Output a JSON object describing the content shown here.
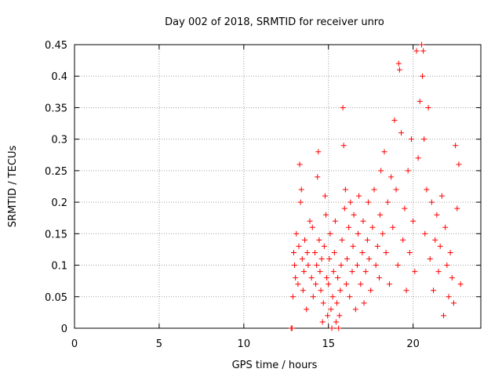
{
  "chart_data": {
    "type": "scatter",
    "title": "Day 002 of 2018, SRMTID for receiver unro",
    "xlabel": "GPS time / hours",
    "ylabel": "SRMTID / TECUs",
    "xlim": [
      0,
      24
    ],
    "ylim": [
      0,
      0.45
    ],
    "xticks": [
      0,
      5,
      10,
      15,
      20
    ],
    "yticks": [
      0,
      0.05,
      0.1,
      0.15,
      0.2,
      0.25,
      0.3,
      0.35,
      0.4,
      0.45
    ],
    "grid": true,
    "legend": "none",
    "marker": "plus",
    "color": "#ff0000",
    "series": [
      {
        "name": "SRMTID",
        "points": [
          [
            12.8,
            0.0
          ],
          [
            12.85,
            0.0
          ],
          [
            12.9,
            0.05
          ],
          [
            12.95,
            0.12
          ],
          [
            13.0,
            0.1
          ],
          [
            13.05,
            0.08
          ],
          [
            13.1,
            0.15
          ],
          [
            13.2,
            0.07
          ],
          [
            13.25,
            0.13
          ],
          [
            13.3,
            0.26
          ],
          [
            13.35,
            0.2
          ],
          [
            13.4,
            0.22
          ],
          [
            13.45,
            0.11
          ],
          [
            13.5,
            0.06
          ],
          [
            13.55,
            0.09
          ],
          [
            13.6,
            0.14
          ],
          [
            13.7,
            0.03
          ],
          [
            13.75,
            0.12
          ],
          [
            13.8,
            0.1
          ],
          [
            13.9,
            0.17
          ],
          [
            14.0,
            0.08
          ],
          [
            14.05,
            0.16
          ],
          [
            14.1,
            0.05
          ],
          [
            14.2,
            0.12
          ],
          [
            14.25,
            0.07
          ],
          [
            14.3,
            0.1
          ],
          [
            14.35,
            0.24
          ],
          [
            14.4,
            0.28
          ],
          [
            14.45,
            0.14
          ],
          [
            14.5,
            0.09
          ],
          [
            14.55,
            0.06
          ],
          [
            14.6,
            0.11
          ],
          [
            14.65,
            0.01
          ],
          [
            14.7,
            0.04
          ],
          [
            14.75,
            0.13
          ],
          [
            14.8,
            0.21
          ],
          [
            14.85,
            0.18
          ],
          [
            14.9,
            0.08
          ],
          [
            14.95,
            0.02
          ],
          [
            15.0,
            0.07
          ],
          [
            15.05,
            0.11
          ],
          [
            15.1,
            0.15
          ],
          [
            15.15,
            0.03
          ],
          [
            15.2,
            0.0
          ],
          [
            15.25,
            0.05
          ],
          [
            15.3,
            0.09
          ],
          [
            15.35,
            0.12
          ],
          [
            15.4,
            0.17
          ],
          [
            15.45,
            0.01
          ],
          [
            15.5,
            0.04
          ],
          [
            15.55,
            0.08
          ],
          [
            15.6,
            0.0
          ],
          [
            15.65,
            0.02
          ],
          [
            15.7,
            0.06
          ],
          [
            15.75,
            0.1
          ],
          [
            15.8,
            0.14
          ],
          [
            15.85,
            0.35
          ],
          [
            15.9,
            0.29
          ],
          [
            15.95,
            0.19
          ],
          [
            16.0,
            0.22
          ],
          [
            16.05,
            0.07
          ],
          [
            16.1,
            0.11
          ],
          [
            16.2,
            0.16
          ],
          [
            16.25,
            0.05
          ],
          [
            16.3,
            0.2
          ],
          [
            16.4,
            0.09
          ],
          [
            16.45,
            0.13
          ],
          [
            16.5,
            0.18
          ],
          [
            16.6,
            0.03
          ],
          [
            16.7,
            0.1
          ],
          [
            16.75,
            0.15
          ],
          [
            16.8,
            0.21
          ],
          [
            16.9,
            0.07
          ],
          [
            17.0,
            0.12
          ],
          [
            17.05,
            0.17
          ],
          [
            17.1,
            0.04
          ],
          [
            17.2,
            0.09
          ],
          [
            17.3,
            0.14
          ],
          [
            17.35,
            0.2
          ],
          [
            17.4,
            0.11
          ],
          [
            17.5,
            0.06
          ],
          [
            17.6,
            0.16
          ],
          [
            17.7,
            0.22
          ],
          [
            17.8,
            0.1
          ],
          [
            17.9,
            0.13
          ],
          [
            18.0,
            0.08
          ],
          [
            18.05,
            0.18
          ],
          [
            18.1,
            0.25
          ],
          [
            18.2,
            0.15
          ],
          [
            18.3,
            0.28
          ],
          [
            18.4,
            0.12
          ],
          [
            18.5,
            0.2
          ],
          [
            18.6,
            0.07
          ],
          [
            18.7,
            0.24
          ],
          [
            18.8,
            0.16
          ],
          [
            18.9,
            0.33
          ],
          [
            19.0,
            0.22
          ],
          [
            19.1,
            0.1
          ],
          [
            19.15,
            0.42
          ],
          [
            19.2,
            0.41
          ],
          [
            19.3,
            0.31
          ],
          [
            19.4,
            0.14
          ],
          [
            19.5,
            0.19
          ],
          [
            19.6,
            0.06
          ],
          [
            19.7,
            0.25
          ],
          [
            19.8,
            0.12
          ],
          [
            19.9,
            0.3
          ],
          [
            20.0,
            0.17
          ],
          [
            20.1,
            0.09
          ],
          [
            20.2,
            0.44
          ],
          [
            20.3,
            0.27
          ],
          [
            20.4,
            0.36
          ],
          [
            20.5,
            0.45
          ],
          [
            20.55,
            0.4
          ],
          [
            20.6,
            0.44
          ],
          [
            20.65,
            0.3
          ],
          [
            20.7,
            0.15
          ],
          [
            20.8,
            0.22
          ],
          [
            20.9,
            0.35
          ],
          [
            21.0,
            0.11
          ],
          [
            21.1,
            0.2
          ],
          [
            21.2,
            0.06
          ],
          [
            21.3,
            0.14
          ],
          [
            21.4,
            0.18
          ],
          [
            21.5,
            0.09
          ],
          [
            21.6,
            0.13
          ],
          [
            21.7,
            0.21
          ],
          [
            21.8,
            0.02
          ],
          [
            21.9,
            0.16
          ],
          [
            22.0,
            0.1
          ],
          [
            22.1,
            0.05
          ],
          [
            22.2,
            0.12
          ],
          [
            22.3,
            0.08
          ],
          [
            22.4,
            0.04
          ],
          [
            22.5,
            0.29
          ],
          [
            22.6,
            0.19
          ],
          [
            22.7,
            0.26
          ],
          [
            22.8,
            0.07
          ]
        ]
      }
    ]
  }
}
